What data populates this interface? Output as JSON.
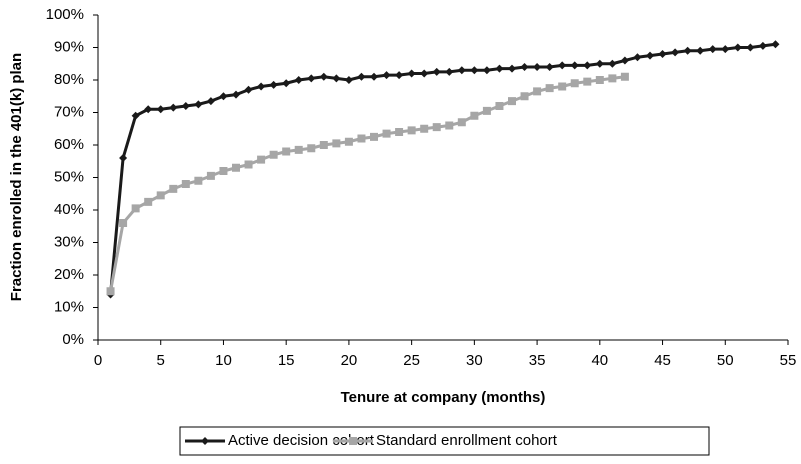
{
  "chart_data": {
    "type": "line",
    "xlabel": "Tenure at company (months)",
    "ylabel": "Fraction enrolled in the 401(k) plan",
    "xlim": [
      0,
      55
    ],
    "xticks": [
      0,
      5,
      10,
      15,
      20,
      25,
      30,
      35,
      40,
      45,
      50,
      55
    ],
    "ylim": [
      0,
      100
    ],
    "yticks": [
      {
        "value": 0,
        "label": "0%"
      },
      {
        "value": 10,
        "label": "10%"
      },
      {
        "value": 20,
        "label": "20%"
      },
      {
        "value": 30,
        "label": "30%"
      },
      {
        "value": 40,
        "label": "40%"
      },
      {
        "value": 50,
        "label": "50%"
      },
      {
        "value": 60,
        "label": "60%"
      },
      {
        "value": 70,
        "label": "70%"
      },
      {
        "value": 80,
        "label": "80%"
      },
      {
        "value": 90,
        "label": "90%"
      },
      {
        "value": 100,
        "label": "100%"
      }
    ],
    "legend": "bottom",
    "series": [
      {
        "name": "Active decision cohort",
        "color": "#1a1a1a",
        "marker": "diamond",
        "x": [
          1,
          2,
          3,
          4,
          5,
          6,
          7,
          8,
          9,
          10,
          11,
          12,
          13,
          14,
          15,
          16,
          17,
          18,
          19,
          20,
          21,
          22,
          23,
          24,
          25,
          26,
          27,
          28,
          29,
          30,
          31,
          32,
          33,
          34,
          35,
          36,
          37,
          38,
          39,
          40,
          41,
          42,
          43,
          44,
          45,
          46,
          47,
          48,
          49,
          50,
          51,
          52,
          53,
          54
        ],
        "values": [
          14,
          56,
          69,
          71,
          71,
          71.5,
          72,
          72.5,
          73.5,
          75,
          75.5,
          77,
          78,
          78.5,
          79,
          80,
          80.5,
          81,
          80.5,
          80,
          81,
          81,
          81.5,
          81.5,
          82,
          82,
          82.5,
          82.5,
          83,
          83,
          83,
          83.5,
          83.5,
          84,
          84,
          84,
          84.5,
          84.5,
          84.5,
          85,
          85,
          86,
          87,
          87.5,
          88,
          88.5,
          89,
          89,
          89.5,
          89.5,
          90,
          90,
          90.5,
          91
        ]
      },
      {
        "name": "Standard enrollment cohort",
        "color": "#a6a6a6",
        "marker": "square",
        "x": [
          1,
          2,
          3,
          4,
          5,
          6,
          7,
          8,
          9,
          10,
          11,
          12,
          13,
          14,
          15,
          16,
          17,
          18,
          19,
          20,
          21,
          22,
          23,
          24,
          25,
          26,
          27,
          28,
          29,
          30,
          31,
          32,
          33,
          34,
          35,
          36,
          37,
          38,
          39,
          40,
          41,
          42
        ],
        "values": [
          15,
          36,
          40.5,
          42.5,
          44.5,
          46.5,
          48,
          49,
          50.5,
          52,
          53,
          54,
          55.5,
          57,
          58,
          58.5,
          59,
          60,
          60.5,
          61,
          62,
          62.5,
          63.5,
          64,
          64.5,
          65,
          65.5,
          66,
          67,
          69,
          70.5,
          72,
          73.5,
          75,
          76.5,
          77.5,
          78,
          79,
          79.5,
          80,
          80.5,
          81
        ]
      }
    ]
  }
}
